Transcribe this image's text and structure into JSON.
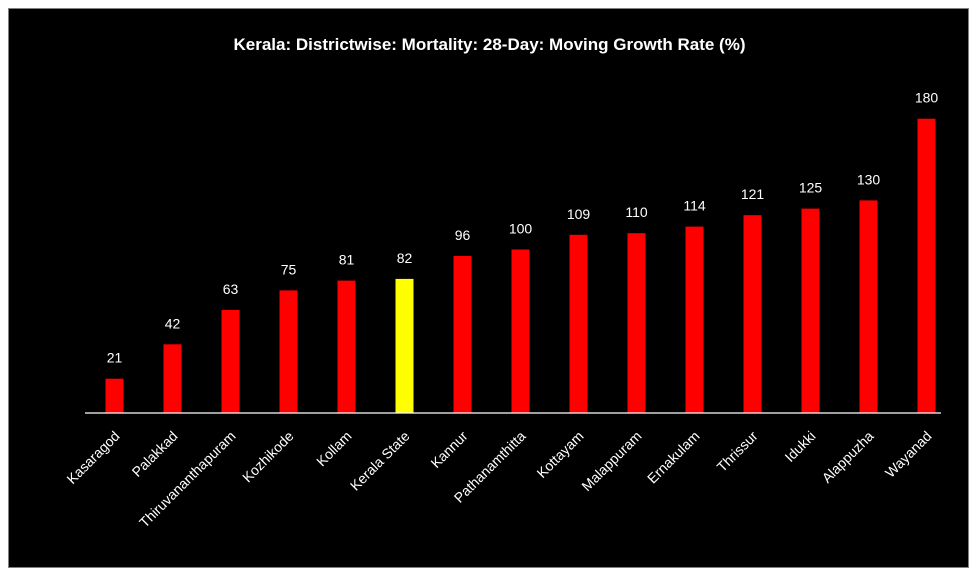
{
  "chart_data": {
    "type": "bar",
    "title": "Kerala: Districtwise: Mortality: 28-Day: Moving Growth Rate (%)",
    "xlabel": "",
    "ylabel": "",
    "ylim": [
      0,
      200
    ],
    "grid": false,
    "categories": [
      "Kasaragod",
      "Palakkad",
      "Thiruvananthapuram",
      "Kozhikode",
      "Kollam",
      "Kerala State",
      "Kannur",
      "Pathanamthitta",
      "Kottayam",
      "Malappuram",
      "Ernakulam",
      "Thrissur",
      "Idukki",
      "Alappuzha",
      "Wayanad"
    ],
    "values": [
      21,
      42,
      63,
      75,
      81,
      82,
      96,
      100,
      109,
      110,
      114,
      121,
      125,
      130,
      180
    ],
    "value_labels": [
      "21",
      "42",
      "63",
      "75",
      "81",
      "82",
      "96",
      "100",
      "109",
      "110",
      "114",
      "121",
      "125",
      "130",
      "180"
    ],
    "colors": {
      "background": "#000000",
      "bar": "#ff0000",
      "highlight": "#ffff00",
      "text": "#ffffff",
      "axis": "#ffffff"
    },
    "highlight_category": "Kerala State"
  }
}
